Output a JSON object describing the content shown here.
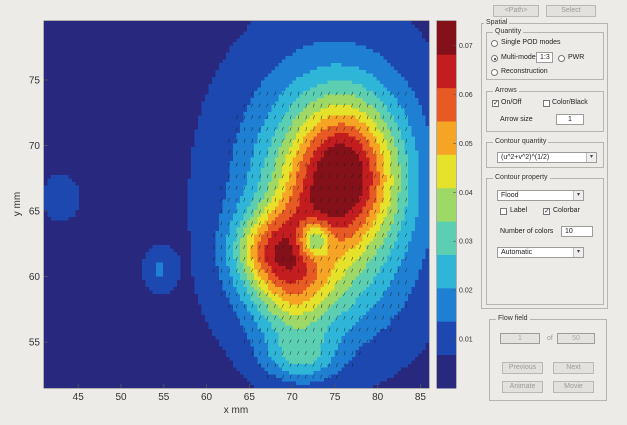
{
  "toolbar": {
    "btn1_label": "<Path>",
    "btn2_label": "Select"
  },
  "spatial": {
    "title": "Spatial",
    "quantity": {
      "title": "Quantity",
      "single_label": "Single POD modes",
      "multi_label": "Multi-mode",
      "multi_value": "1:3",
      "pwr_label": "PWR",
      "recon_label": "Reconstruction"
    },
    "arrows": {
      "title": "Arrows",
      "onoff_label": "On/Off",
      "color_label": "Color/Black",
      "size_label": "Arrow size",
      "size_value": "1"
    },
    "contour_quantity": {
      "title": "Contour quantity",
      "selected": "(u^2+v^2)^(1/2)"
    },
    "contour_property": {
      "title": "Contour property",
      "style_selected": "Flood",
      "label_label": "Label",
      "colorbar_label": "Colorbar",
      "ncolors_label": "Number of colors",
      "ncolors_value": "10",
      "scale_selected": "Automatic"
    }
  },
  "flow_field": {
    "title": "Flow field",
    "current": "1",
    "of_label": "of",
    "total": "50",
    "prev_label": "Previous",
    "next_label": "Next",
    "animate_label": "Animate",
    "movie_label": "Movie"
  },
  "chart_data": {
    "type": "heatmap",
    "xlabel": "x mm",
    "ylabel": "y mm",
    "xlim": [
      41,
      86
    ],
    "ylim": [
      51.5,
      79.5
    ],
    "xticks": [
      45,
      50,
      55,
      60,
      65,
      70,
      75,
      80,
      85
    ],
    "yticks": [
      55,
      60,
      65,
      70,
      75
    ],
    "colorbar": {
      "min": 0.0,
      "max": 0.075,
      "ticks": [
        0.01,
        0.02,
        0.03,
        0.04,
        0.05,
        0.06,
        0.07
      ],
      "levels": 10
    },
    "colormap": [
      "#27287e",
      "#1c48b0",
      "#1f7fd2",
      "#2fb5d8",
      "#5ccfb2",
      "#9ed867",
      "#e6e12a",
      "#f6a423",
      "#e75a23",
      "#c41d20",
      "#84111a"
    ],
    "blobs": [
      {
        "cx": 76,
        "cy": 67.8,
        "sx": 4.2,
        "sy": 3.9,
        "amp": 0.043
      },
      {
        "cx": 74.5,
        "cy": 66.5,
        "sx": 7.5,
        "sy": 7.0,
        "amp": 0.032
      },
      {
        "cx": 70,
        "cy": 60.8,
        "sx": 3.2,
        "sy": 3.5,
        "amp": 0.03
      },
      {
        "cx": 66.5,
        "cy": 62,
        "sx": 2.8,
        "sy": 2.0,
        "amp": 0.022
      },
      {
        "cx": 54.5,
        "cy": 60.5,
        "sx": 1.2,
        "sy": 1.1,
        "amp": 0.01
      },
      {
        "cx": 43,
        "cy": 66,
        "sx": 1.4,
        "sy": 1.2,
        "amp": 0.009
      },
      {
        "cx": 71,
        "cy": 53.8,
        "sx": 3.0,
        "sy": 1.3,
        "amp": 0.016
      },
      {
        "cx": 72,
        "cy": 58.2,
        "sx": 6.0,
        "sy": 2.5,
        "amp": 0.008
      }
    ],
    "holes": [
      {
        "cx": 72.6,
        "cy": 62.8,
        "sx": 1.3,
        "sy": 1.0,
        "amp": 0.03
      }
    ],
    "base": 0.004
  }
}
